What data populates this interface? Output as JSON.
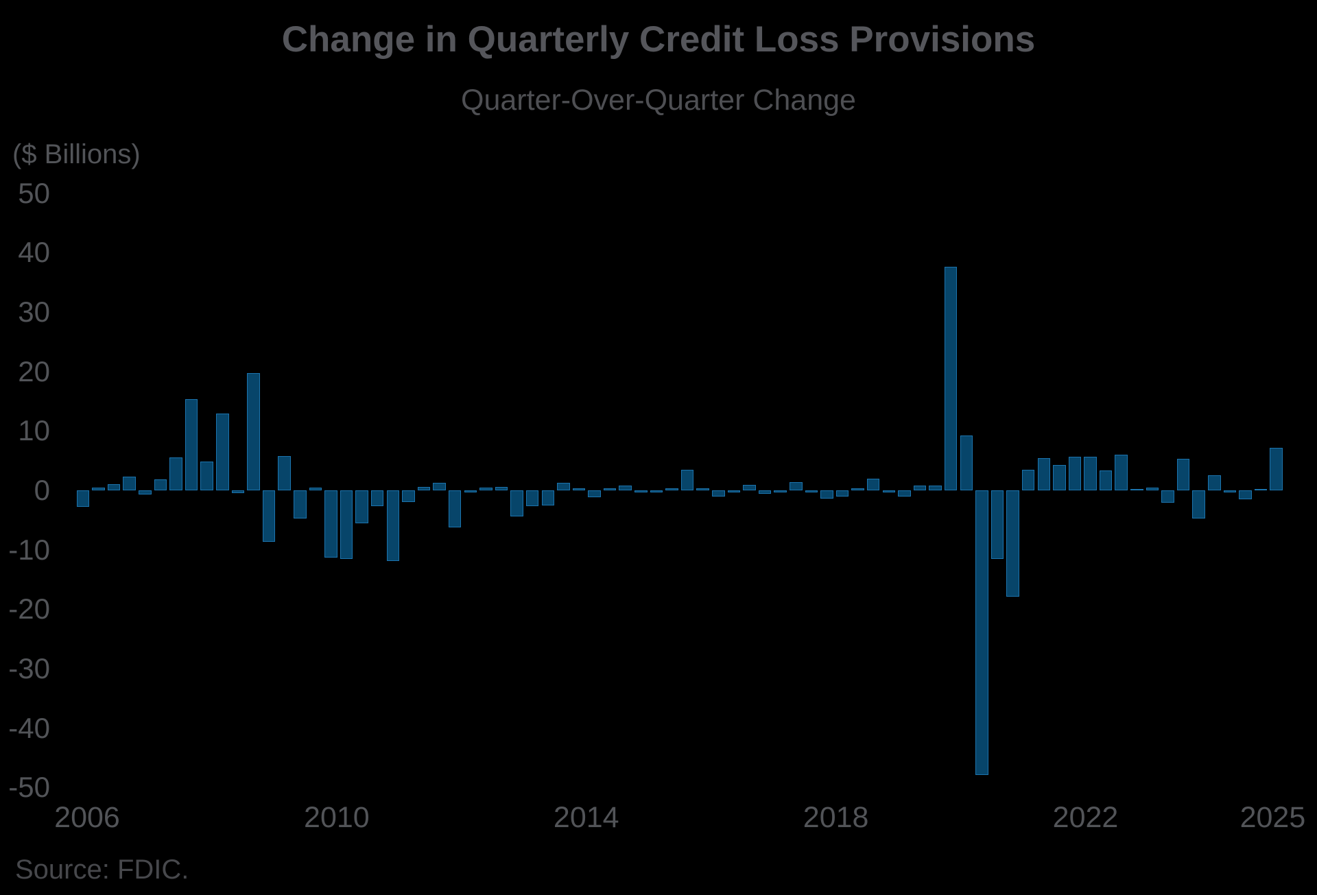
{
  "header": {
    "title": "Change in Quarterly Credit Loss Provisions",
    "subtitle": "Quarter-Over-Quarter Change",
    "unit_label": "($ Billions)"
  },
  "footer": {
    "source": "Source: FDIC."
  },
  "colors": {
    "background": "#000000",
    "bar_fill": "#07456a",
    "bar_edge": "#1c74ae",
    "title_text": "#55565b",
    "axis_text": "#525458",
    "source_text": "#47484c"
  },
  "chart_data": {
    "type": "bar",
    "title": "Change in Quarterly Credit Loss Provisions",
    "subtitle": "Quarter-Over-Quarter Change",
    "ylabel": "($ Billions)",
    "xlabel": "",
    "source": "Source: FDIC.",
    "ylim": [
      -50,
      50
    ],
    "yticks": [
      50,
      40,
      30,
      20,
      10,
      0,
      -10,
      -20,
      -30,
      -40,
      -50
    ],
    "xtick_years": [
      "2006",
      "2010",
      "2014",
      "2018",
      "2022",
      "2025"
    ],
    "grid": false,
    "legend": false,
    "categories": [
      "2006 Q1",
      "2006 Q2",
      "2006 Q3",
      "2006 Q4",
      "2007 Q1",
      "2007 Q2",
      "2007 Q3",
      "2007 Q4",
      "2008 Q1",
      "2008 Q2",
      "2008 Q3",
      "2008 Q4",
      "2009 Q1",
      "2009 Q2",
      "2009 Q3",
      "2009 Q4",
      "2010 Q1",
      "2010 Q2",
      "2010 Q3",
      "2010 Q4",
      "2011 Q1",
      "2011 Q2",
      "2011 Q3",
      "2011 Q4",
      "2012 Q1",
      "2012 Q2",
      "2012 Q3",
      "2012 Q4",
      "2013 Q1",
      "2013 Q2",
      "2013 Q3",
      "2013 Q4",
      "2014 Q1",
      "2014 Q2",
      "2014 Q3",
      "2014 Q4",
      "2015 Q1",
      "2015 Q2",
      "2015 Q3",
      "2015 Q4",
      "2016 Q1",
      "2016 Q2",
      "2016 Q3",
      "2016 Q4",
      "2017 Q1",
      "2017 Q2",
      "2017 Q3",
      "2017 Q4",
      "2018 Q1",
      "2018 Q2",
      "2018 Q3",
      "2018 Q4",
      "2019 Q1",
      "2019 Q2",
      "2019 Q3",
      "2019 Q4",
      "2020 Q1",
      "2020 Q2",
      "2020 Q3",
      "2020 Q4",
      "2021 Q1",
      "2021 Q2",
      "2021 Q3",
      "2021 Q4",
      "2022 Q1",
      "2022 Q2",
      "2022 Q3",
      "2022 Q4",
      "2023 Q1",
      "2023 Q2",
      "2023 Q3",
      "2023 Q4",
      "2024 Q1",
      "2024 Q2",
      "2024 Q3",
      "2024 Q4",
      "2025 Q1",
      "2025 Q2"
    ],
    "values": [
      -2.8,
      0.5,
      1.0,
      2.3,
      -0.7,
      1.9,
      5.5,
      15.4,
      4.8,
      12.9,
      -0.5,
      19.7,
      -8.7,
      5.8,
      -4.7,
      0.5,
      -11.3,
      -11.5,
      -5.5,
      -2.7,
      -11.9,
      -2.0,
      0.6,
      1.3,
      -6.2,
      -0.3,
      0.5,
      0.6,
      -4.4,
      -2.7,
      -2.5,
      1.3,
      0.3,
      -1.2,
      0.3,
      0.8,
      -0.3,
      -0.3,
      0.4,
      3.5,
      0.4,
      -1.0,
      -0.4,
      0.9,
      -0.6,
      -0.3,
      1.4,
      -0.4,
      -1.4,
      -1.0,
      0.3,
      2.0,
      -0.3,
      -1.0,
      0.8,
      0.8,
      37.6,
      9.2,
      -47.9,
      -11.5,
      -17.9,
      3.5,
      5.4,
      4.3,
      5.7,
      5.7,
      3.3,
      6.0,
      0.2,
      0.5,
      -2.1,
      5.3,
      -4.7,
      2.5,
      -0.3,
      -1.5,
      0.2,
      7.2
    ]
  }
}
